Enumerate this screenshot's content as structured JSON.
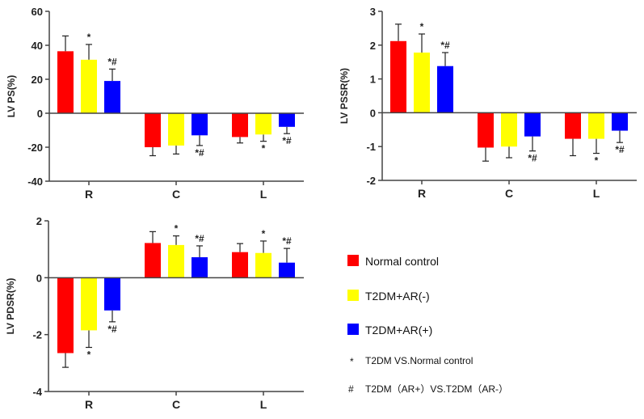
{
  "chart_data": [
    {
      "type": "bar",
      "ylabel": "LV PS(%)",
      "categories": [
        "R",
        "C",
        "L"
      ],
      "ylim": [
        -40,
        60
      ],
      "yticks": [
        60,
        40,
        20,
        0,
        -20,
        -40
      ],
      "series": [
        {
          "name": "Normal control",
          "values": [
            36.5,
            -20,
            -14
          ],
          "errors": [
            9,
            5,
            3.5
          ],
          "annotations": [
            "",
            "",
            ""
          ]
        },
        {
          "name": "T2DM+AR(-)",
          "values": [
            31.5,
            -19,
            -12.5
          ],
          "errors": [
            9,
            5,
            4
          ],
          "annotations": [
            "*",
            "",
            "*"
          ]
        },
        {
          "name": "T2DM+AR(+)",
          "values": [
            19,
            -13,
            -8
          ],
          "errors": [
            7,
            6,
            4
          ],
          "annotations": [
            "*#",
            "*#",
            "*#"
          ]
        }
      ]
    },
    {
      "type": "bar",
      "ylabel": "LV PSSR(%)",
      "categories": [
        "R",
        "C",
        "L"
      ],
      "ylim": [
        -2,
        3
      ],
      "yticks": [
        3,
        2,
        1,
        0,
        -1,
        -2
      ],
      "series": [
        {
          "name": "Normal control",
          "values": [
            2.12,
            -1.03,
            -0.77
          ],
          "errors": [
            0.5,
            0.4,
            0.5
          ],
          "annotations": [
            "",
            "",
            ""
          ]
        },
        {
          "name": "T2DM+AR(-)",
          "values": [
            1.78,
            -1.0,
            -0.77
          ],
          "errors": [
            0.55,
            0.33,
            0.43
          ],
          "annotations": [
            "*",
            "",
            "*"
          ]
        },
        {
          "name": "T2DM+AR(+)",
          "values": [
            1.38,
            -0.7,
            -0.53
          ],
          "errors": [
            0.4,
            0.43,
            0.35
          ],
          "annotations": [
            "*#",
            "*#",
            "*#"
          ]
        }
      ]
    },
    {
      "type": "bar",
      "ylabel": "LV PDSR(%)",
      "categories": [
        "R",
        "C",
        "L"
      ],
      "ylim": [
        -4,
        2
      ],
      "yticks": [
        2,
        0,
        -2,
        -4
      ],
      "series": [
        {
          "name": "Normal control",
          "values": [
            -2.65,
            1.22,
            0.9
          ],
          "errors": [
            0.5,
            0.4,
            0.3
          ],
          "annotations": [
            "",
            "",
            ""
          ]
        },
        {
          "name": "T2DM+AR(-)",
          "values": [
            -1.85,
            1.15,
            0.87
          ],
          "errors": [
            0.6,
            0.32,
            0.42
          ],
          "annotations": [
            "*",
            "*",
            "*"
          ]
        },
        {
          "name": "T2DM+AR(+)",
          "values": [
            -1.15,
            0.72,
            0.53
          ],
          "errors": [
            0.4,
            0.4,
            0.5
          ],
          "annotations": [
            "*#",
            "*#",
            "*#"
          ]
        }
      ]
    }
  ],
  "colors": [
    "#ff0000",
    "#ffff00",
    "#0000ff"
  ],
  "legend": {
    "items": [
      "Normal control",
      "T2DM+AR(-)",
      "T2DM+AR(+)"
    ],
    "notes": [
      {
        "symbol": "*",
        "text": "T2DM VS.Normal control"
      },
      {
        "symbol": "#",
        "text": "T2DM（AR+）VS.T2DM（AR-）"
      }
    ]
  }
}
